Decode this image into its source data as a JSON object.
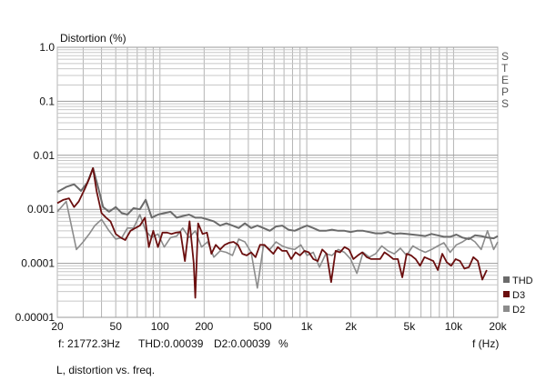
{
  "chart_data": {
    "type": "line",
    "title": "Distortion (%)",
    "xlabel": "f (Hz)",
    "ylabel": "Distortion (%)",
    "x_scale": "log",
    "y_scale": "log",
    "xlim": [
      20,
      20000
    ],
    "ylim": [
      1e-05,
      1.0
    ],
    "grid": true,
    "legend_placement": "bottom-right",
    "side_label": [
      "S",
      "T",
      "E",
      "P",
      "S"
    ],
    "x_ticks": [
      {
        "value": 20,
        "label": "20"
      },
      {
        "value": 50,
        "label": "50"
      },
      {
        "value": 100,
        "label": "100"
      },
      {
        "value": 200,
        "label": "200"
      },
      {
        "value": 500,
        "label": "500"
      },
      {
        "value": 1000,
        "label": "1k"
      },
      {
        "value": 2000,
        "label": "2k"
      },
      {
        "value": 5000,
        "label": "5k"
      },
      {
        "value": 10000,
        "label": "10k"
      },
      {
        "value": 20000,
        "label": "20k"
      }
    ],
    "y_ticks": [
      {
        "value": 1.0,
        "label": "1.0"
      },
      {
        "value": 0.1,
        "label": "0.1"
      },
      {
        "value": 0.01,
        "label": "0.01"
      },
      {
        "value": 0.001,
        "label": "0.001"
      },
      {
        "value": 0.0001,
        "label": "0.0001"
      },
      {
        "value": 1e-05,
        "label": "0.00001"
      }
    ],
    "series": [
      {
        "name": "THD",
        "color": "#6b6b6b",
        "x": [
          20,
          23,
          26,
          29,
          32,
          35,
          38,
          41,
          45,
          50,
          55,
          60,
          66,
          73,
          80,
          88,
          97,
          107,
          118,
          130,
          143,
          158,
          174,
          192,
          211,
          233,
          257,
          283,
          312,
          344,
          379,
          418,
          461,
          508,
          560,
          617,
          680,
          750,
          827,
          912,
          1005,
          1108,
          1222,
          1347,
          1485,
          1637,
          1805,
          1990,
          2194,
          2419,
          2667,
          2940,
          3241,
          3573,
          3939,
          4343,
          4788,
          5278,
          5819,
          6415,
          7072,
          7797,
          8596,
          9476,
          10447,
          11517,
          12697,
          13998,
          15432,
          17013,
          18756,
          20000
        ],
        "y": [
          0.0021,
          0.0026,
          0.0029,
          0.0022,
          0.0031,
          0.0058,
          0.0025,
          0.0011,
          0.0009,
          0.0011,
          0.00085,
          0.0008,
          0.00105,
          0.001,
          0.0015,
          0.0007,
          0.0008,
          0.00085,
          0.0009,
          0.0007,
          0.00075,
          0.0008,
          0.0007,
          0.0007,
          0.00065,
          0.0006,
          0.0005,
          0.00055,
          0.0005,
          0.00045,
          0.00055,
          0.00045,
          0.0005,
          0.00045,
          0.0004,
          0.00048,
          0.0005,
          0.00042,
          0.0004,
          0.00045,
          0.0005,
          0.00045,
          0.0004,
          0.0004,
          0.00042,
          0.0004,
          0.0004,
          0.00038,
          0.0004,
          0.0004,
          0.00038,
          0.00036,
          0.00036,
          0.00038,
          0.00035,
          0.00036,
          0.00035,
          0.00034,
          0.00033,
          0.00032,
          0.00035,
          0.00033,
          0.00031,
          0.00031,
          0.00034,
          0.0003,
          0.00028,
          0.00033,
          0.00032,
          0.0003,
          0.00029,
          0.00032
        ]
      },
      {
        "name": "D3",
        "color": "#6b0f0f",
        "x": [
          20,
          22,
          24,
          26,
          28,
          31,
          33,
          35,
          37,
          40,
          43,
          46,
          50,
          54,
          58,
          63,
          68,
          73,
          79,
          84,
          90,
          97,
          104,
          112,
          120,
          129,
          138,
          148,
          159,
          170,
          174,
          182,
          195,
          209,
          224,
          240,
          257,
          276,
          296,
          317,
          340,
          364,
          390,
          418,
          448,
          480,
          515,
          552,
          592,
          635,
          681,
          730,
          783,
          839,
          900,
          965,
          1034,
          1109,
          1189,
          1275,
          1367,
          1466,
          1572,
          1685,
          1807,
          1938,
          2078,
          2228,
          2389,
          2561,
          2746,
          2944,
          3157,
          3385,
          3629,
          3891,
          4172,
          4473,
          4796,
          5142,
          5513,
          5911,
          6338,
          6796,
          7286,
          7812,
          8376,
          8981,
          9629,
          10324,
          11069,
          11868,
          12725,
          13644,
          14629,
          15685,
          16817
        ],
        "y": [
          0.0013,
          0.0015,
          0.0016,
          0.0011,
          0.0014,
          0.0025,
          0.0037,
          0.0058,
          0.0022,
          0.00085,
          0.0007,
          0.0006,
          0.00035,
          0.0003,
          0.00027,
          0.0004,
          0.00045,
          0.0005,
          0.0007,
          0.0002,
          0.0004,
          0.0002,
          0.00037,
          0.00037,
          0.00035,
          0.00037,
          0.00038,
          0.00011,
          0.0006,
          0.0001,
          2.3e-05,
          0.00055,
          0.00035,
          0.00037,
          0.00015,
          0.00022,
          0.00018,
          0.00022,
          0.00024,
          0.00025,
          0.00022,
          0.00015,
          0.00014,
          0.00016,
          0.00013,
          0.00022,
          0.00022,
          0.00018,
          0.00015,
          0.0002,
          0.00017,
          0.00017,
          0.00012,
          0.00016,
          0.00014,
          0.00017,
          0.00016,
          0.00012,
          0.00011,
          0.00018,
          0.00015,
          4.5e-05,
          0.00017,
          0.00016,
          0.0002,
          0.00018,
          0.00012,
          0.00014,
          0.00016,
          0.00013,
          0.00012,
          0.00012,
          0.00012,
          0.00016,
          0.00014,
          0.00012,
          0.00012,
          5.5e-05,
          0.00015,
          0.00014,
          0.00012,
          9e-05,
          0.00013,
          0.00012,
          0.00011,
          7.5e-05,
          0.00015,
          0.000105,
          9e-05,
          0.00012,
          0.00011,
          8e-05,
          8.5e-05,
          0.00013,
          0.00011,
          5e-05,
          7.5e-05
        ]
      },
      {
        "name": "D2",
        "color": "#8c8c8c",
        "x": [
          20,
          23,
          27,
          30,
          33,
          36,
          40,
          45,
          50,
          55,
          60,
          66,
          73,
          80,
          88,
          97,
          107,
          118,
          130,
          143,
          158,
          174,
          192,
          211,
          233,
          257,
          283,
          312,
          344,
          379,
          418,
          461,
          508,
          560,
          617,
          680,
          750,
          827,
          912,
          1005,
          1108,
          1222,
          1347,
          1485,
          1637,
          1805,
          1990,
          2194,
          2419,
          2667,
          2940,
          3241,
          3573,
          3939,
          4343,
          4788,
          5278,
          5819,
          6415,
          7072,
          7797,
          8596,
          9476,
          10447,
          11517,
          12697,
          13998,
          15432,
          17013,
          18756,
          20000
        ],
        "y": [
          0.0009,
          0.0014,
          0.00018,
          0.00025,
          0.00035,
          0.0005,
          0.00065,
          0.0004,
          0.00028,
          0.0003,
          0.00045,
          0.00045,
          0.0008,
          0.0004,
          0.0003,
          0.00035,
          0.0002,
          0.0003,
          0.00032,
          0.00045,
          0.0003,
          0.0004,
          0.0002,
          0.00025,
          0.00013,
          0.00017,
          0.00016,
          0.00014,
          0.00028,
          0.00025,
          0.00016,
          3.5e-05,
          0.00022,
          0.00018,
          0.00025,
          0.00021,
          0.00019,
          0.00018,
          0.00022,
          0.00014,
          0.00016,
          8.5e-05,
          0.00015,
          0.00014,
          0.00018,
          0.00016,
          0.00012,
          6.5e-05,
          0.00016,
          0.00013,
          0.00015,
          0.00021,
          0.00017,
          0.00015,
          0.00019,
          0.00014,
          0.00021,
          0.00018,
          0.00016,
          0.00018,
          0.00021,
          0.00024,
          0.00016,
          0.00022,
          0.00025,
          0.0003,
          0.00025,
          0.00018,
          0.0004,
          0.00018,
          0.00025
        ]
      }
    ],
    "cursor_readout": {
      "frequency": "f: 21772.3Hz",
      "thd": "THD:0.00039",
      "d2": "D2:0.00039",
      "unit": "%"
    },
    "footer_caption": "L, distortion vs. freq."
  }
}
